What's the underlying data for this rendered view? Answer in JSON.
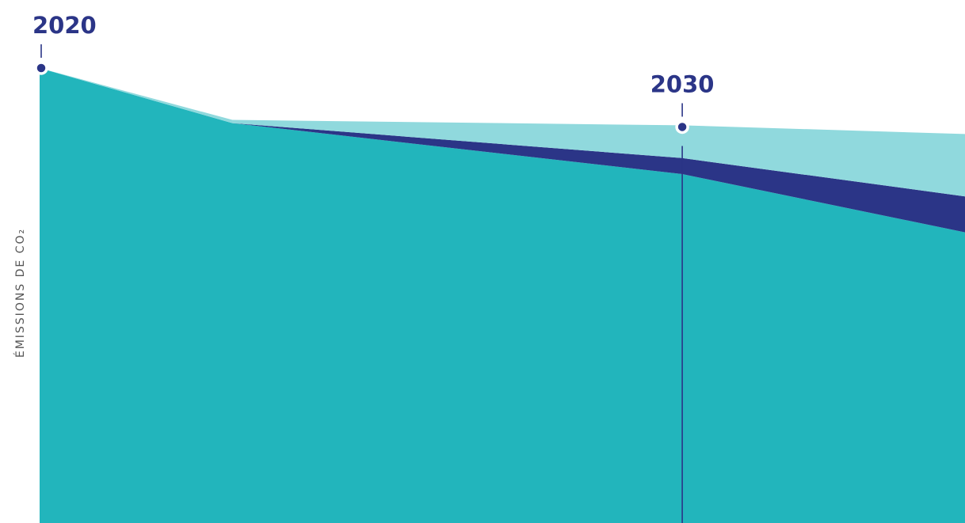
{
  "chart_data": {
    "type": "area",
    "title": "",
    "xlabel": "",
    "ylabel": "ÉMISSIONS DE CO₂",
    "x": [
      2020,
      2023,
      2030,
      2034.4
    ],
    "series": [
      {
        "values": [
          100,
          87.9,
          76.7,
          63.9
        ],
        "color": "#22b5bc"
      },
      {
        "values": [
          0,
          0,
          3.5,
          7.9
        ],
        "color": "#2b3587"
      },
      {
        "values": [
          0,
          0.7,
          7.2,
          13.7
        ],
        "color": "#90d9dd"
      }
    ],
    "markers": [
      {
        "x": 2020,
        "label": "2020"
      },
      {
        "x": 2030,
        "label": "2030"
      }
    ],
    "xlim": [
      2020,
      2034.4
    ],
    "ylim": [
      0,
      100
    ],
    "grid": false,
    "legend": "none"
  },
  "colors": {
    "accent": "#2b3587",
    "background": "#ffffff"
  }
}
